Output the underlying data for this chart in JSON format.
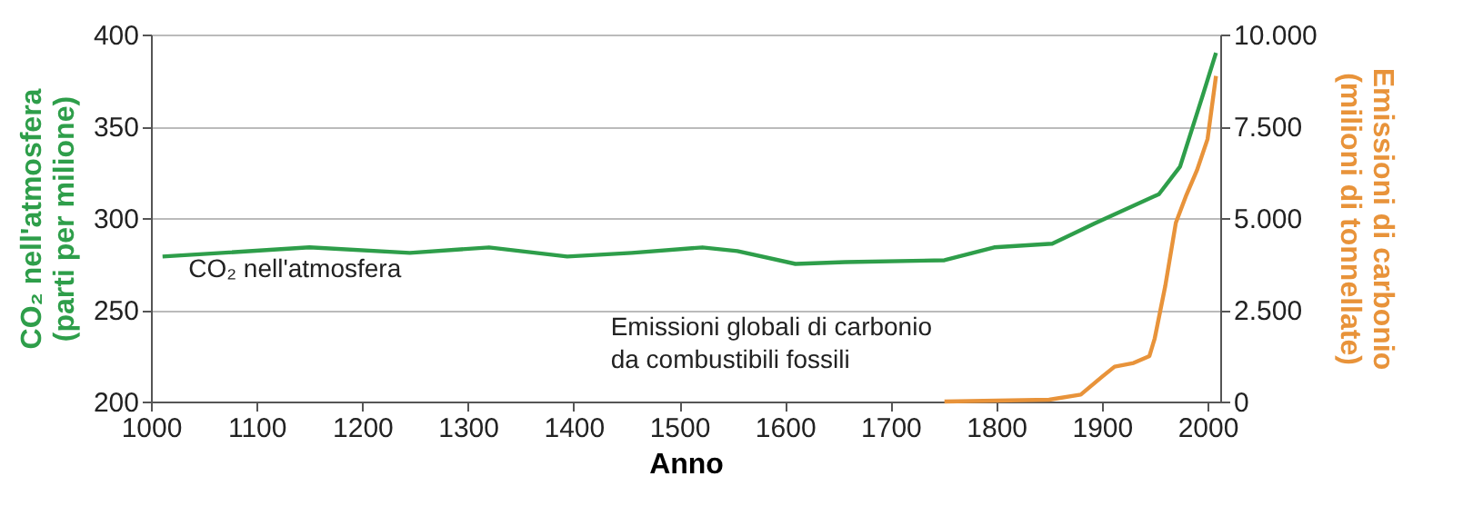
{
  "chart_data": {
    "type": "line",
    "xlabel": "Anno",
    "ylabel": "CO₂ nell'atmosfera (parti per milione)",
    "y2label": "Emissioni di carbonio (milioni di tonnellate)",
    "xlim": [
      1000,
      2012
    ],
    "xticks": [
      1000,
      1100,
      1200,
      1300,
      1400,
      1500,
      1600,
      1700,
      1800,
      1900,
      2000
    ],
    "ylim": [
      200,
      400
    ],
    "yticks": [
      200,
      250,
      300,
      350,
      400
    ],
    "y2lim": [
      0,
      10000
    ],
    "y2ticks": [
      0,
      {
        "value": 2500,
        "label": "2.500"
      },
      {
        "value": 5000,
        "label": "5.000"
      },
      {
        "value": 7500,
        "label": "7.500"
      },
      {
        "value": 10000,
        "label": "10.000"
      }
    ],
    "grid": "y",
    "marker": "none",
    "line_style": "solid",
    "series": [
      {
        "name": "CO₂ nell'atmosfera",
        "color": "#2e9e4a",
        "x": [
          1011,
          1150,
          1245,
          1320,
          1394,
          1455,
          1522,
          1555,
          1610,
          1657,
          1751,
          1798,
          1853,
          1893,
          1954,
          1974,
          1995,
          2008
        ],
        "values": [
          279,
          284,
          281,
          284,
          279,
          281,
          284,
          282,
          275,
          276,
          277,
          284,
          286,
          297,
          313,
          328,
          366,
          390
        ]
      },
      {
        "name": "Emissioni globali di carbonio da combustibili fossili",
        "color": "#e8933a",
        "axis": "y2",
        "x": [
          1751,
          1850,
          1880,
          1900,
          1912,
          1930,
          1945,
          1950,
          1960,
          1970,
          1980,
          1990,
          2000,
          2008
        ],
        "values": [
          0,
          50,
          190,
          670,
          950,
          1050,
          1240,
          1720,
          3150,
          4870,
          5630,
          6300,
          7150,
          8870
        ]
      }
    ]
  }
}
